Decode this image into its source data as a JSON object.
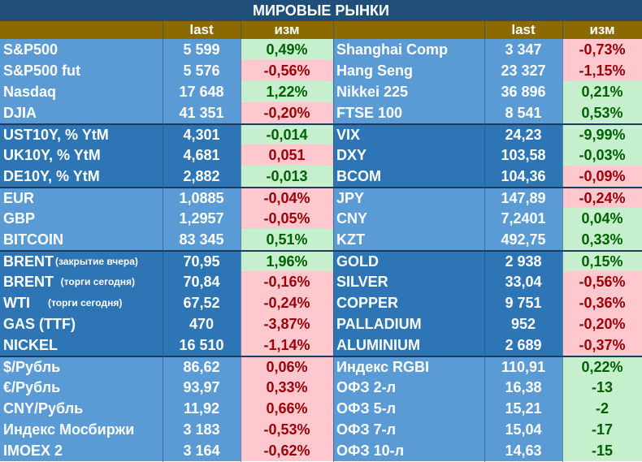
{
  "title": "МИРОВЫЕ РЫНКИ",
  "header": {
    "last": "last",
    "chg": "изм",
    "last2": "last",
    "chg2": "изм"
  },
  "colors": {
    "title_bg": "#1f4e79",
    "header_bg": "#8b6a00",
    "group_light": "#5b9bd5",
    "group_dark": "#2e75b6",
    "positive_bg": "#c6efce",
    "positive_text": "#006100",
    "negative_bg": "#ffc7ce",
    "negative_text": "#9c0006"
  },
  "rows": [
    {
      "group": "light",
      "sep": false,
      "left": {
        "name": "S&P500",
        "suffix": "",
        "last": "5 599",
        "chg": "0,49%",
        "dir": "pos"
      },
      "right": {
        "name": "Shanghai Comp",
        "last": "3 347",
        "chg": "-0,73%",
        "dir": "neg"
      }
    },
    {
      "group": "light",
      "sep": false,
      "left": {
        "name": "S&P500 fut",
        "suffix": "",
        "last": "5 576",
        "chg": "-0,56%",
        "dir": "neg"
      },
      "right": {
        "name": "Hang Seng",
        "last": "23 327",
        "chg": "-1,15%",
        "dir": "neg"
      }
    },
    {
      "group": "light",
      "sep": false,
      "left": {
        "name": "Nasdaq",
        "suffix": "",
        "last": "17 648",
        "chg": "1,22%",
        "dir": "pos"
      },
      "right": {
        "name": "Nikkei 225",
        "last": "36 896",
        "chg": "0,21%",
        "dir": "pos"
      }
    },
    {
      "group": "light",
      "sep": false,
      "left": {
        "name": "DJIA",
        "suffix": "",
        "last": "41 351",
        "chg": "-0,20%",
        "dir": "neg"
      },
      "right": {
        "name": "FTSE 100",
        "last": "8 541",
        "chg": "0,53%",
        "dir": "pos"
      }
    },
    {
      "group": "dark",
      "sep": true,
      "left": {
        "name": "UST10Y, % YtM",
        "suffix": "",
        "last": "4,301",
        "chg": "-0,014",
        "dir": "pos"
      },
      "right": {
        "name": "VIX",
        "last": "24,23",
        "chg": "-9,99%",
        "dir": "pos"
      }
    },
    {
      "group": "dark",
      "sep": false,
      "left": {
        "name": "UK10Y, % YtM",
        "suffix": "",
        "last": "4,681",
        "chg": "0,051",
        "dir": "neg"
      },
      "right": {
        "name": "DXY",
        "last": "103,58",
        "chg": "-0,03%",
        "dir": "pos"
      }
    },
    {
      "group": "dark",
      "sep": false,
      "left": {
        "name": "DE10Y, % YtM",
        "suffix": "",
        "last": "2,882",
        "chg": "-0,013",
        "dir": "pos"
      },
      "right": {
        "name": "BCOM",
        "last": "104,36",
        "chg": "-0,09%",
        "dir": "neg"
      }
    },
    {
      "group": "light",
      "sep": true,
      "left": {
        "name": "EUR",
        "suffix": "",
        "last": "1,0885",
        "chg": "-0,04%",
        "dir": "neg"
      },
      "right": {
        "name": "JPY",
        "last": "147,89",
        "chg": "-0,24%",
        "dir": "neg"
      }
    },
    {
      "group": "light",
      "sep": false,
      "left": {
        "name": "GBP",
        "suffix": "",
        "last": "1,2957",
        "chg": "-0,05%",
        "dir": "neg"
      },
      "right": {
        "name": "CNY",
        "last": "7,2401",
        "chg": "0,04%",
        "dir": "pos"
      }
    },
    {
      "group": "light",
      "sep": false,
      "left": {
        "name": "BITCOIN",
        "suffix": "",
        "last": "83 345",
        "chg": "0,51%",
        "dir": "pos"
      },
      "right": {
        "name": "KZT",
        "last": "492,75",
        "chg": "0,33%",
        "dir": "pos"
      }
    },
    {
      "group": "dark",
      "sep": true,
      "left": {
        "name": "BRENT",
        "suffix": "(закрытие вчера)",
        "last": "70,95",
        "chg": "1,96%",
        "dir": "pos"
      },
      "right": {
        "name": "GOLD",
        "last": "2 938",
        "chg": "0,15%",
        "dir": "pos"
      }
    },
    {
      "group": "dark",
      "sep": false,
      "left": {
        "name": "BRENT",
        "suffix": "  (торги сегодня)",
        "last": "70,84",
        "chg": "-0,16%",
        "dir": "neg"
      },
      "right": {
        "name": "SILVER",
        "last": "33,04",
        "chg": "-0,56%",
        "dir": "neg"
      }
    },
    {
      "group": "dark",
      "sep": false,
      "left": {
        "name": "WTI",
        "suffix": "      (торги сегодня)",
        "last": "67,52",
        "chg": "-0,24%",
        "dir": "neg"
      },
      "right": {
        "name": "COPPER",
        "last": "9 751",
        "chg": "-0,36%",
        "dir": "neg"
      }
    },
    {
      "group": "dark",
      "sep": false,
      "left": {
        "name": "GAS (TTF)",
        "suffix": "",
        "last": "470",
        "chg": "-3,87%",
        "dir": "neg"
      },
      "right": {
        "name": "PALLADIUM",
        "last": "952",
        "chg": "-0,20%",
        "dir": "neg"
      }
    },
    {
      "group": "dark",
      "sep": false,
      "left": {
        "name": "NICKEL",
        "suffix": "",
        "last": "16 510",
        "chg": "-1,14%",
        "dir": "neg"
      },
      "right": {
        "name": "ALUMINIUM",
        "last": "2 689",
        "chg": "-0,37%",
        "dir": "neg"
      }
    },
    {
      "group": "light",
      "sep": true,
      "left": {
        "name": "$/Рубль",
        "suffix": "",
        "last": "86,62",
        "chg": "0,06%",
        "dir": "neg"
      },
      "right": {
        "name": "Индекс RGBI",
        "last": "110,91",
        "chg": "0,22%",
        "dir": "pos"
      }
    },
    {
      "group": "light",
      "sep": false,
      "left": {
        "name": "€/Рубль",
        "suffix": "",
        "last": "93,97",
        "chg": "0,33%",
        "dir": "neg"
      },
      "right": {
        "name": "ОФЗ 2-л",
        "last": "16,38",
        "chg": "-13",
        "dir": "pos"
      }
    },
    {
      "group": "light",
      "sep": false,
      "left": {
        "name": "CNY/Рубль",
        "suffix": "",
        "last": "11,92",
        "chg": "0,66%",
        "dir": "neg"
      },
      "right": {
        "name": "ОФЗ 5-л",
        "last": "15,21",
        "chg": "-2",
        "dir": "pos"
      }
    },
    {
      "group": "light",
      "sep": false,
      "left": {
        "name": "Индекс Мосбиржи",
        "suffix": "",
        "last": "3 183",
        "chg": "-0,53%",
        "dir": "neg"
      },
      "right": {
        "name": "ОФЗ 7-л",
        "last": "15,04",
        "chg": "-17",
        "dir": "pos"
      }
    },
    {
      "group": "light",
      "sep": false,
      "left": {
        "name": "IMOEX 2",
        "suffix": "",
        "last": "3 164",
        "chg": "-0,62%",
        "dir": "neg"
      },
      "right": {
        "name": "ОФЗ 10-л",
        "last": "14,63",
        "chg": "-15",
        "dir": "pos"
      }
    }
  ]
}
